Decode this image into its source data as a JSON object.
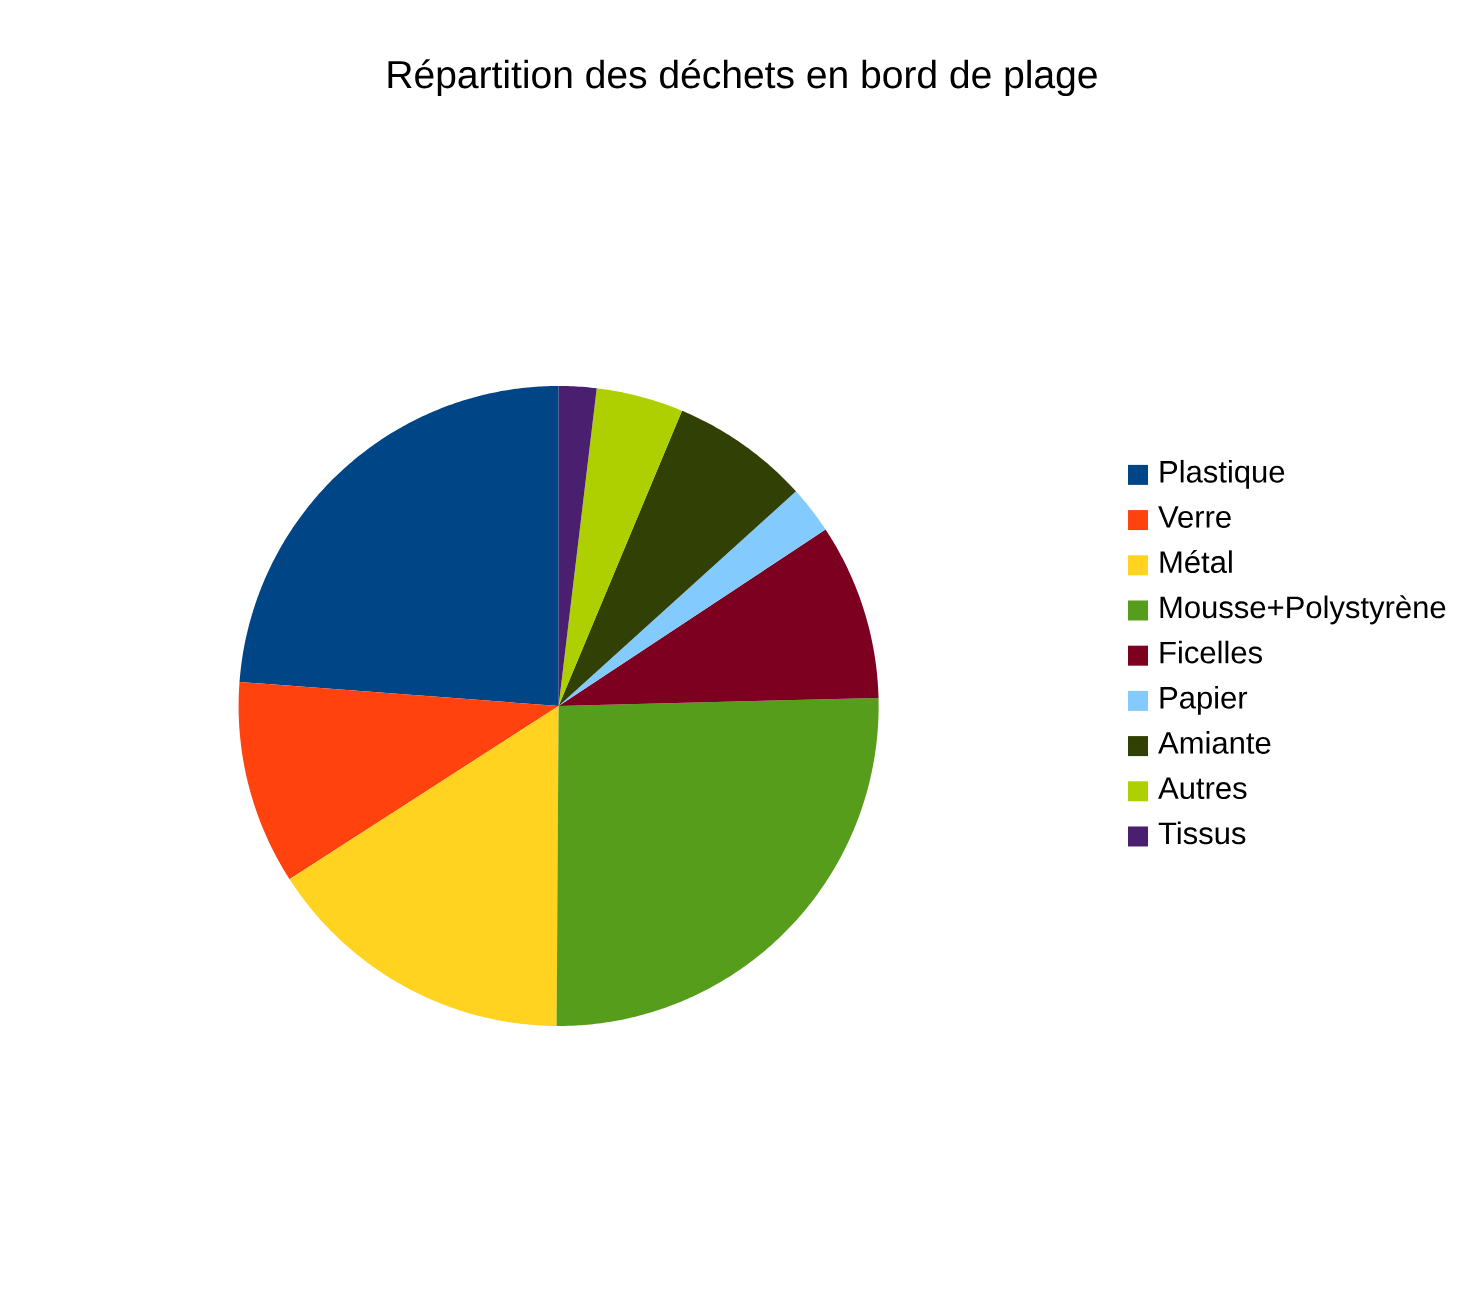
{
  "chart_data": {
    "type": "pie",
    "title": "Répartition des déchets en bord de plage",
    "categories": [
      "Plastique",
      "Verre",
      "Métal",
      "Mousse+Polystyrène",
      "Ficelles",
      "Papier",
      "Amiante",
      "Autres",
      "Tissus"
    ],
    "values": [
      23.8,
      10.3,
      15.8,
      25.5,
      8.9,
      2.4,
      7.0,
      4.4,
      1.9
    ],
    "colors": [
      "#004586",
      "#ff420e",
      "#ffd320",
      "#579d1c",
      "#7e0021",
      "#83caff",
      "#314004",
      "#aecf00",
      "#4b1f6f"
    ],
    "legend": "right"
  }
}
